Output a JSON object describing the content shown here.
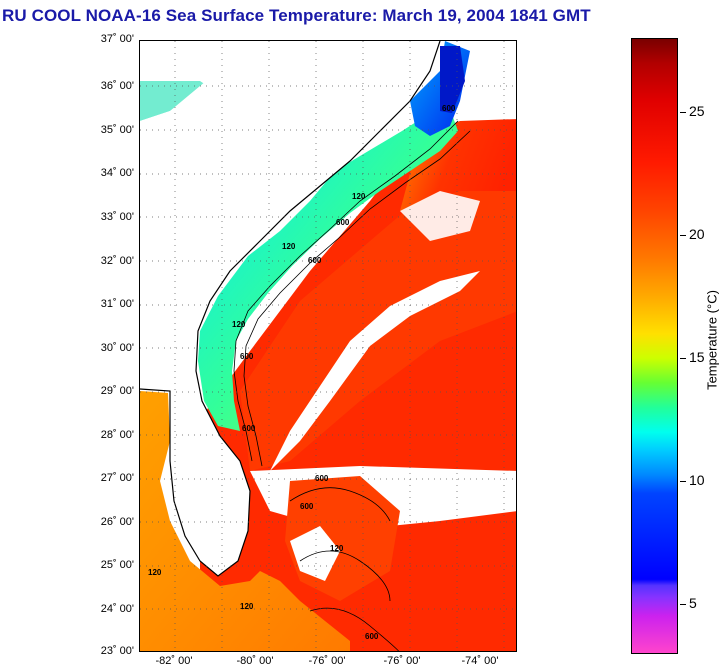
{
  "title": "RU COOL  NOAA-16  Sea Surface Temperature:  March 19, 2004 1841 GMT",
  "map": {
    "lat_labels": [
      "37˚ 00'",
      "36˚ 00'",
      "35˚ 00'",
      "34˚ 00'",
      "33˚ 00'",
      "32˚ 00'",
      "31˚ 00'",
      "30˚ 00'",
      "29˚ 00'",
      "28˚ 00'",
      "27˚ 00'",
      "26˚ 00'",
      "25˚ 00'",
      "24˚ 00'",
      "23˚ 00'"
    ],
    "lon_labels": [
      "-82˚ 00'",
      "-80˚ 00'",
      "-76˚ 00'",
      "-76˚ 00'",
      "-74˚ 00'"
    ],
    "contour_labels": [
      "600",
      "120",
      "600",
      "120",
      "600",
      "120",
      "600",
      "600",
      "600",
      "120",
      "120",
      "600",
      "600",
      "120"
    ],
    "colors": {
      "land": "#ffffff",
      "cloud": "#ffffff",
      "coast": "#000000"
    }
  },
  "colorbar": {
    "ticks": [
      "25",
      "20",
      "15",
      "10",
      "5"
    ],
    "title": "Temperature (°C)",
    "min_c": 3,
    "max_c": 28
  }
}
